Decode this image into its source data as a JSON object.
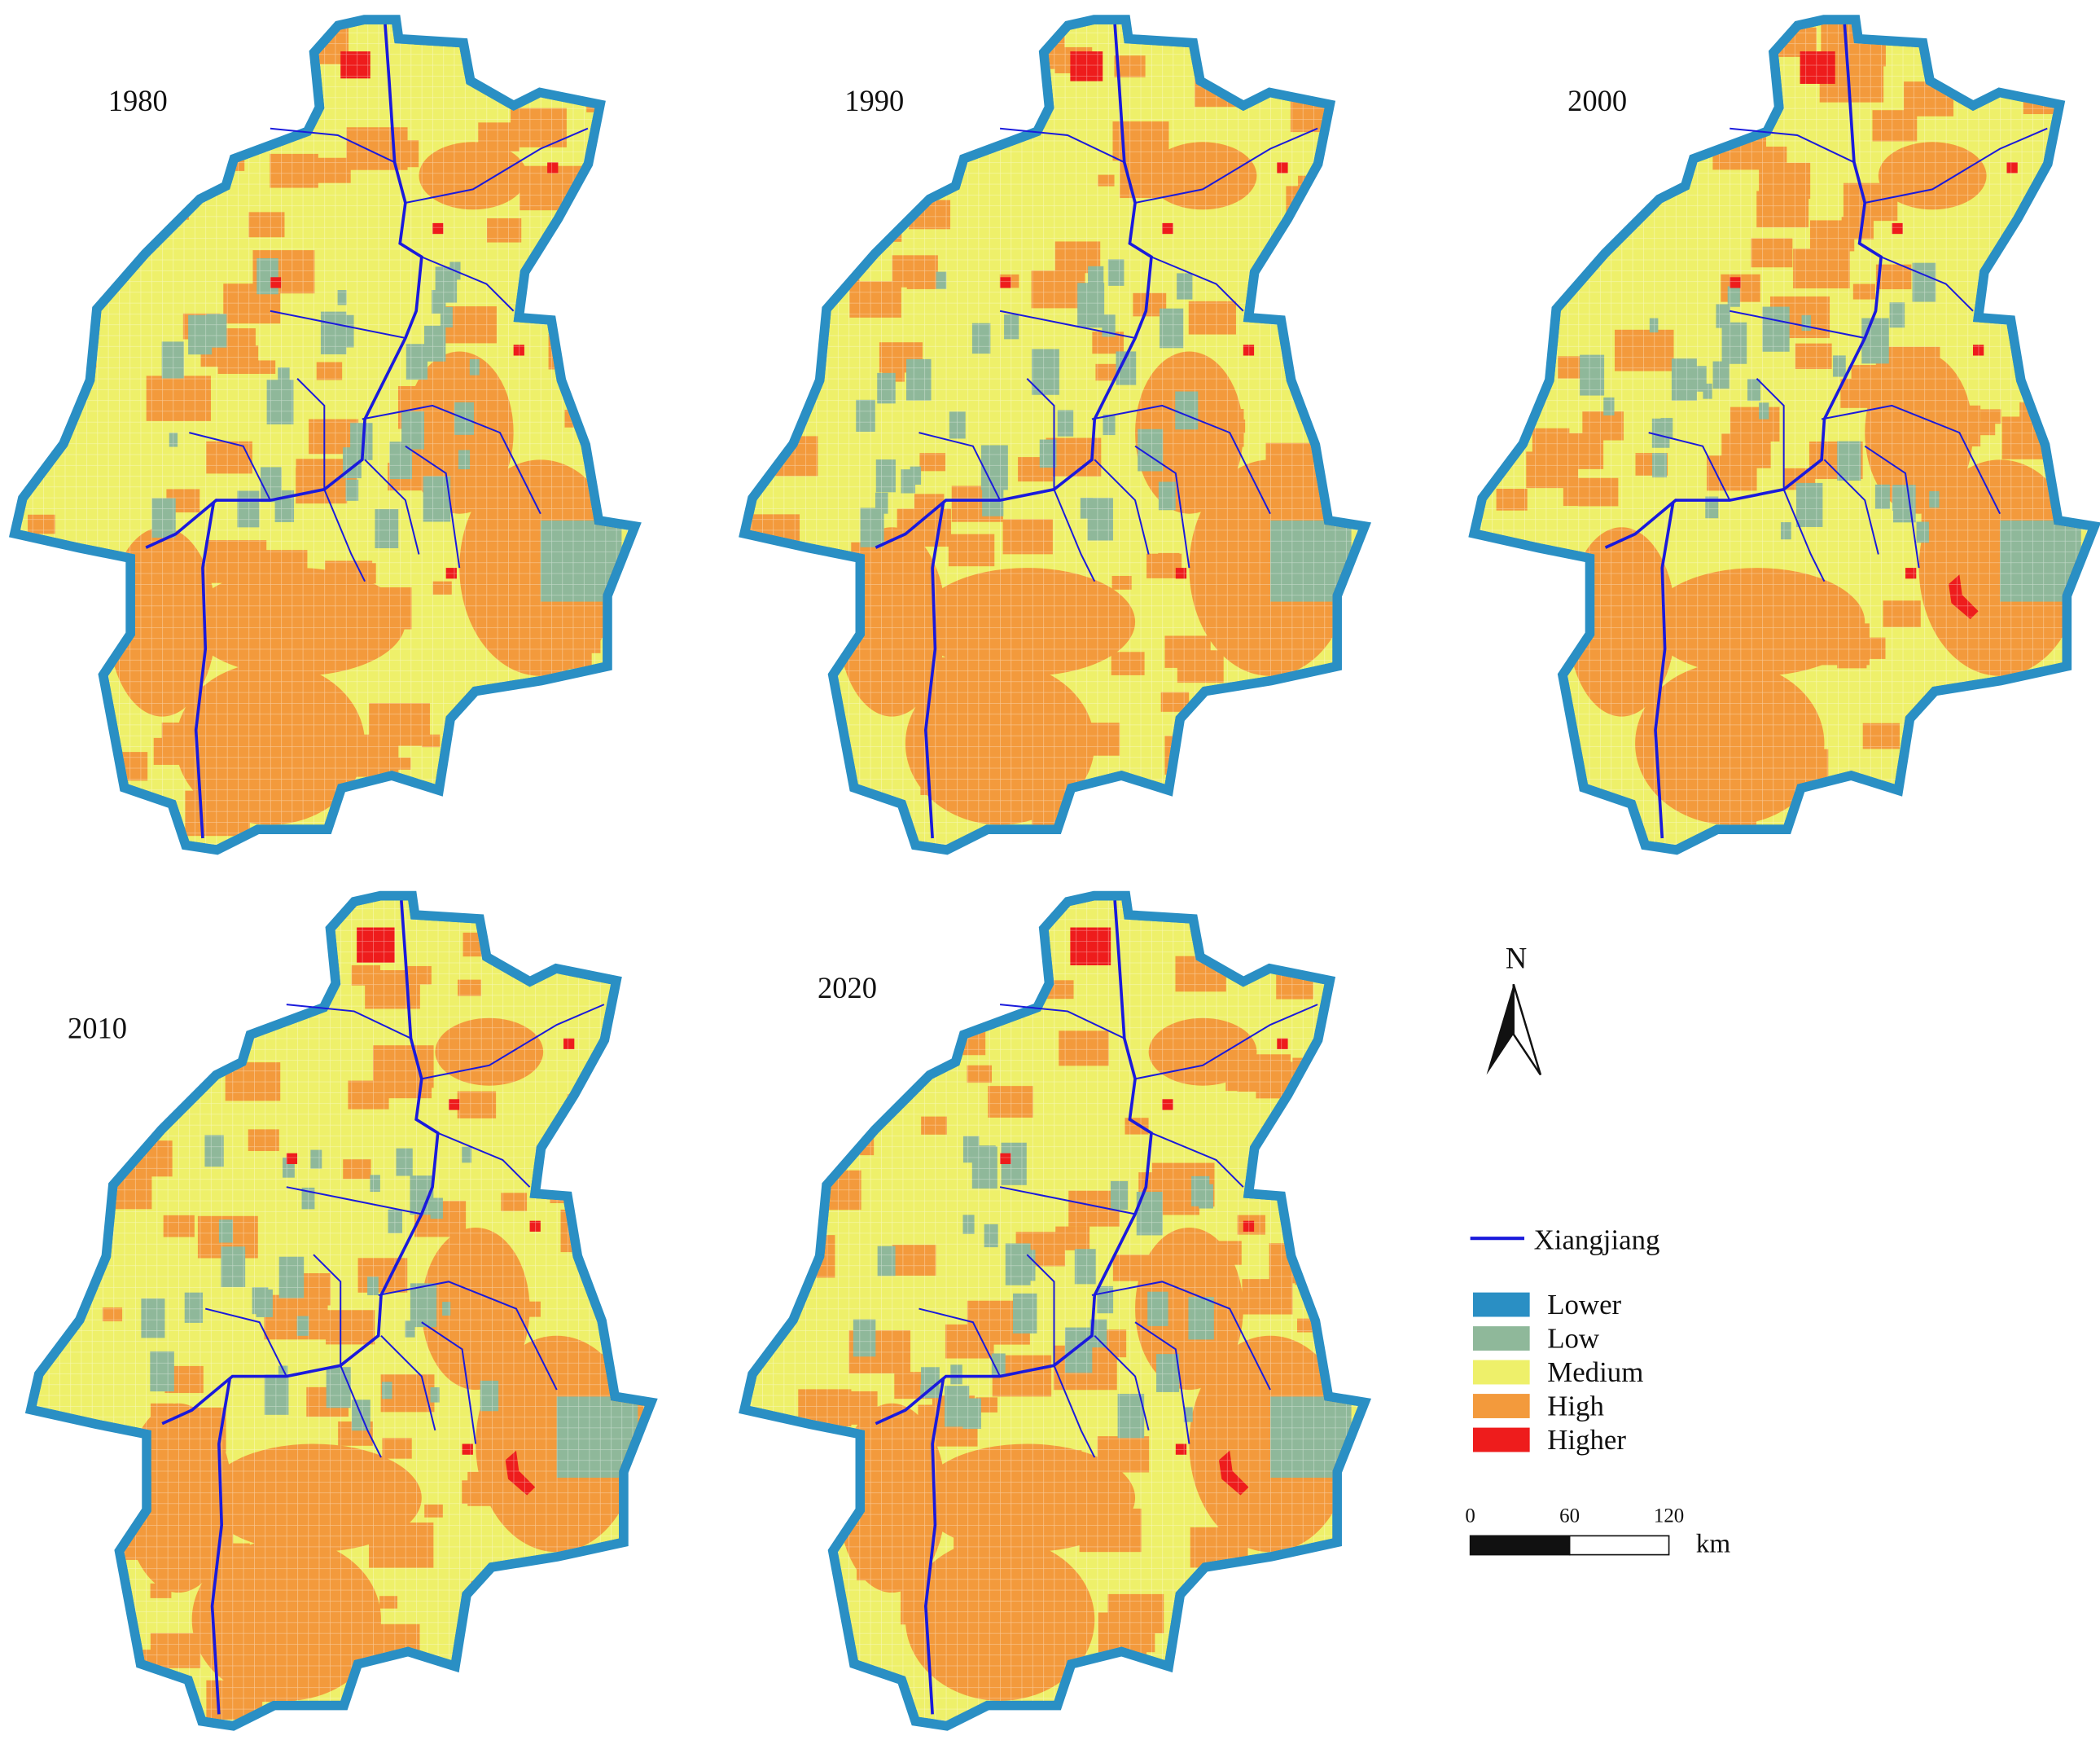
{
  "panels": [
    {
      "year": "1980"
    },
    {
      "year": "1990"
    },
    {
      "year": "2000"
    },
    {
      "year": "2010"
    },
    {
      "year": "2020"
    }
  ],
  "legend": {
    "river": {
      "label": "Xiangjiang",
      "color": "#1a1adc"
    },
    "classes": [
      {
        "label": "Lower",
        "color": "#2a8fc4"
      },
      {
        "label": "Low",
        "color": "#8fb89a"
      },
      {
        "label": "Medium",
        "color": "#eef06a"
      },
      {
        "label": "High",
        "color": "#f39a3c"
      },
      {
        "label": "Higher",
        "color": "#ee1c1c"
      }
    ]
  },
  "north": "N",
  "scale": {
    "ticks": [
      0,
      60,
      120
    ],
    "unit": "km"
  }
}
